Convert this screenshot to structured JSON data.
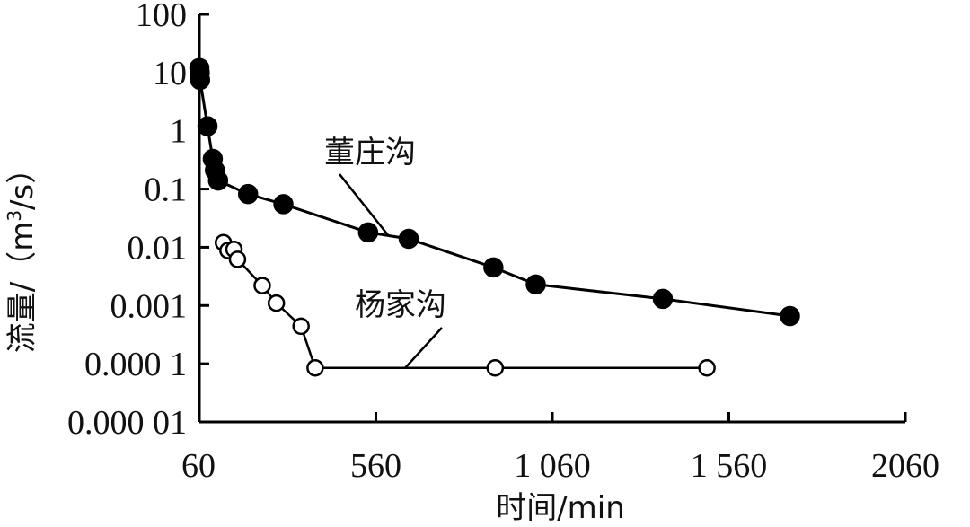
{
  "chart_data": {
    "type": "line",
    "xlabel": "时间/min",
    "ylabel_main": "流量/（m",
    "ylabel_sup": "3",
    "ylabel_tail": "/s）",
    "xlim": [
      60,
      2060
    ],
    "ylim": [
      1e-05,
      100
    ],
    "xscale": "linear",
    "yscale": "log",
    "grid": false,
    "x_ticks": [
      60,
      560,
      1060,
      1560,
      2060
    ],
    "x_tick_labels": [
      "60",
      "560",
      "1 060",
      "1 560",
      "2060"
    ],
    "y_ticks": [
      1e-05,
      0.0001,
      0.001,
      0.01,
      0.1,
      1,
      10,
      100
    ],
    "y_tick_labels": [
      "0.000 01",
      "0.000 1",
      "0.001",
      "0.01",
      "0.1",
      "1",
      "10",
      "100"
    ],
    "series": [
      {
        "name": "董庄沟",
        "marker": "filled",
        "color": "#000000",
        "points": [
          {
            "x": 60,
            "y": 12
          },
          {
            "x": 61,
            "y": 10
          },
          {
            "x": 62,
            "y": 7.5
          },
          {
            "x": 83,
            "y": 1.2
          },
          {
            "x": 98,
            "y": 0.33
          },
          {
            "x": 104,
            "y": 0.21
          },
          {
            "x": 113,
            "y": 0.14
          },
          {
            "x": 198,
            "y": 0.082
          },
          {
            "x": 298,
            "y": 0.055
          },
          {
            "x": 538,
            "y": 0.018
          },
          {
            "x": 653,
            "y": 0.014
          },
          {
            "x": 893,
            "y": 0.0045
          },
          {
            "x": 1013,
            "y": 0.0023
          },
          {
            "x": 1373,
            "y": 0.0013
          },
          {
            "x": 1733,
            "y": 0.00066
          }
        ]
      },
      {
        "name": "杨家沟",
        "marker": "open",
        "color": "#000000",
        "points": [
          {
            "x": 128,
            "y": 0.012
          },
          {
            "x": 141,
            "y": 0.0088
          },
          {
            "x": 158,
            "y": 0.0092
          },
          {
            "x": 168,
            "y": 0.0062
          },
          {
            "x": 238,
            "y": 0.0022
          },
          {
            "x": 278,
            "y": 0.0011
          },
          {
            "x": 348,
            "y": 0.00044
          },
          {
            "x": 388,
            "y": 8.5e-05
          },
          {
            "x": 898,
            "y": 8.5e-05
          },
          {
            "x": 1498,
            "y": 8.5e-05
          }
        ]
      }
    ],
    "annotations": [
      {
        "text": "董庄沟",
        "series": "董庄沟"
      },
      {
        "text": "杨家沟",
        "series": "杨家沟"
      }
    ]
  }
}
